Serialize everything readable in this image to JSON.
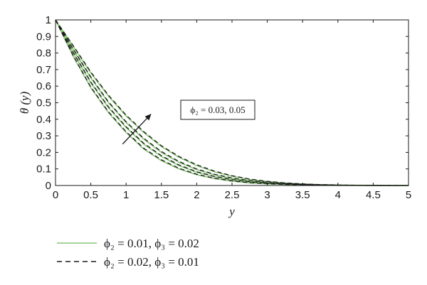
{
  "chart_data": {
    "type": "line",
    "title": "",
    "xlabel": "y",
    "ylabel": "θ (y)",
    "xlim": [
      0,
      5
    ],
    "ylim": [
      0,
      1
    ],
    "grid": false,
    "x_ticks": [
      "0",
      "0.5",
      "1",
      "1.5",
      "2",
      "2.5",
      "3",
      "3.5",
      "4",
      "4.5",
      "5"
    ],
    "y_ticks": [
      "0",
      "0.1",
      "0.2",
      "0.3",
      "0.4",
      "0.5",
      "0.6",
      "0.7",
      "0.8",
      "0.9",
      "1"
    ],
    "annotation": "ϕ₂ = 0.03, 0.05",
    "legend_position": "bottom-left",
    "legend": [
      {
        "label": "ϕ₂ = 0.01, ϕ₃ = 0.02",
        "style": "solid",
        "color": "#8cc47a"
      },
      {
        "label": "ϕ₂ = 0.02, ϕ₃ = 0.01",
        "style": "dashed",
        "color": "#1a1a1a"
      }
    ],
    "x": [
      0,
      0.25,
      0.5,
      0.75,
      1,
      1.25,
      1.5,
      1.75,
      2,
      2.25,
      2.5,
      2.75,
      3,
      3.25,
      3.5,
      3.75,
      4,
      4.25,
      4.5,
      4.75,
      5
    ],
    "series": [
      {
        "group": 0,
        "style": "solid",
        "values": [
          1,
          0.78,
          0.59,
          0.44,
          0.32,
          0.22,
          0.15,
          0.1,
          0.065,
          0.042,
          0.026,
          0.016,
          0.01,
          0.006,
          0.004,
          0.002,
          0.001,
          0.0005,
          0.0002,
          0.0001,
          0
        ]
      },
      {
        "group": 0,
        "style": "solid",
        "values": [
          1,
          0.8,
          0.62,
          0.47,
          0.35,
          0.25,
          0.175,
          0.12,
          0.08,
          0.053,
          0.034,
          0.022,
          0.014,
          0.009,
          0.005,
          0.003,
          0.0015,
          0.0008,
          0.0003,
          0.0001,
          0
        ]
      },
      {
        "group": 0,
        "style": "solid",
        "values": [
          1,
          0.82,
          0.65,
          0.5,
          0.38,
          0.28,
          0.2,
          0.14,
          0.096,
          0.065,
          0.043,
          0.028,
          0.018,
          0.011,
          0.007,
          0.004,
          0.002,
          0.001,
          0.0004,
          0.0001,
          0
        ]
      },
      {
        "group": 0,
        "style": "solid",
        "values": [
          1,
          0.84,
          0.68,
          0.54,
          0.42,
          0.32,
          0.235,
          0.17,
          0.12,
          0.083,
          0.056,
          0.037,
          0.024,
          0.015,
          0.009,
          0.005,
          0.003,
          0.0015,
          0.0006,
          0.0002,
          0
        ]
      },
      {
        "group": 1,
        "style": "dashed",
        "values": [
          1,
          0.785,
          0.595,
          0.445,
          0.325,
          0.225,
          0.155,
          0.104,
          0.068,
          0.044,
          0.028,
          0.017,
          0.011,
          0.0065,
          0.004,
          0.0022,
          0.0011,
          0.0005,
          0.0002,
          0.0001,
          0
        ]
      },
      {
        "group": 1,
        "style": "dashed",
        "values": [
          1,
          0.805,
          0.625,
          0.475,
          0.355,
          0.255,
          0.18,
          0.124,
          0.083,
          0.055,
          0.036,
          0.023,
          0.015,
          0.0095,
          0.0055,
          0.0032,
          0.0016,
          0.0008,
          0.0003,
          0.0001,
          0
        ]
      },
      {
        "group": 1,
        "style": "dashed",
        "values": [
          1,
          0.825,
          0.655,
          0.505,
          0.385,
          0.285,
          0.205,
          0.145,
          0.1,
          0.068,
          0.045,
          0.03,
          0.019,
          0.012,
          0.0075,
          0.0043,
          0.0022,
          0.0011,
          0.0004,
          0.0001,
          0
        ]
      },
      {
        "group": 1,
        "style": "dashed",
        "values": [
          1,
          0.845,
          0.685,
          0.545,
          0.425,
          0.325,
          0.24,
          0.175,
          0.125,
          0.087,
          0.059,
          0.039,
          0.025,
          0.016,
          0.0095,
          0.0055,
          0.003,
          0.0015,
          0.0006,
          0.0002,
          0
        ]
      }
    ],
    "arrow": {
      "from": [
        0.95,
        0.25
      ],
      "to": [
        1.35,
        0.43
      ]
    }
  }
}
